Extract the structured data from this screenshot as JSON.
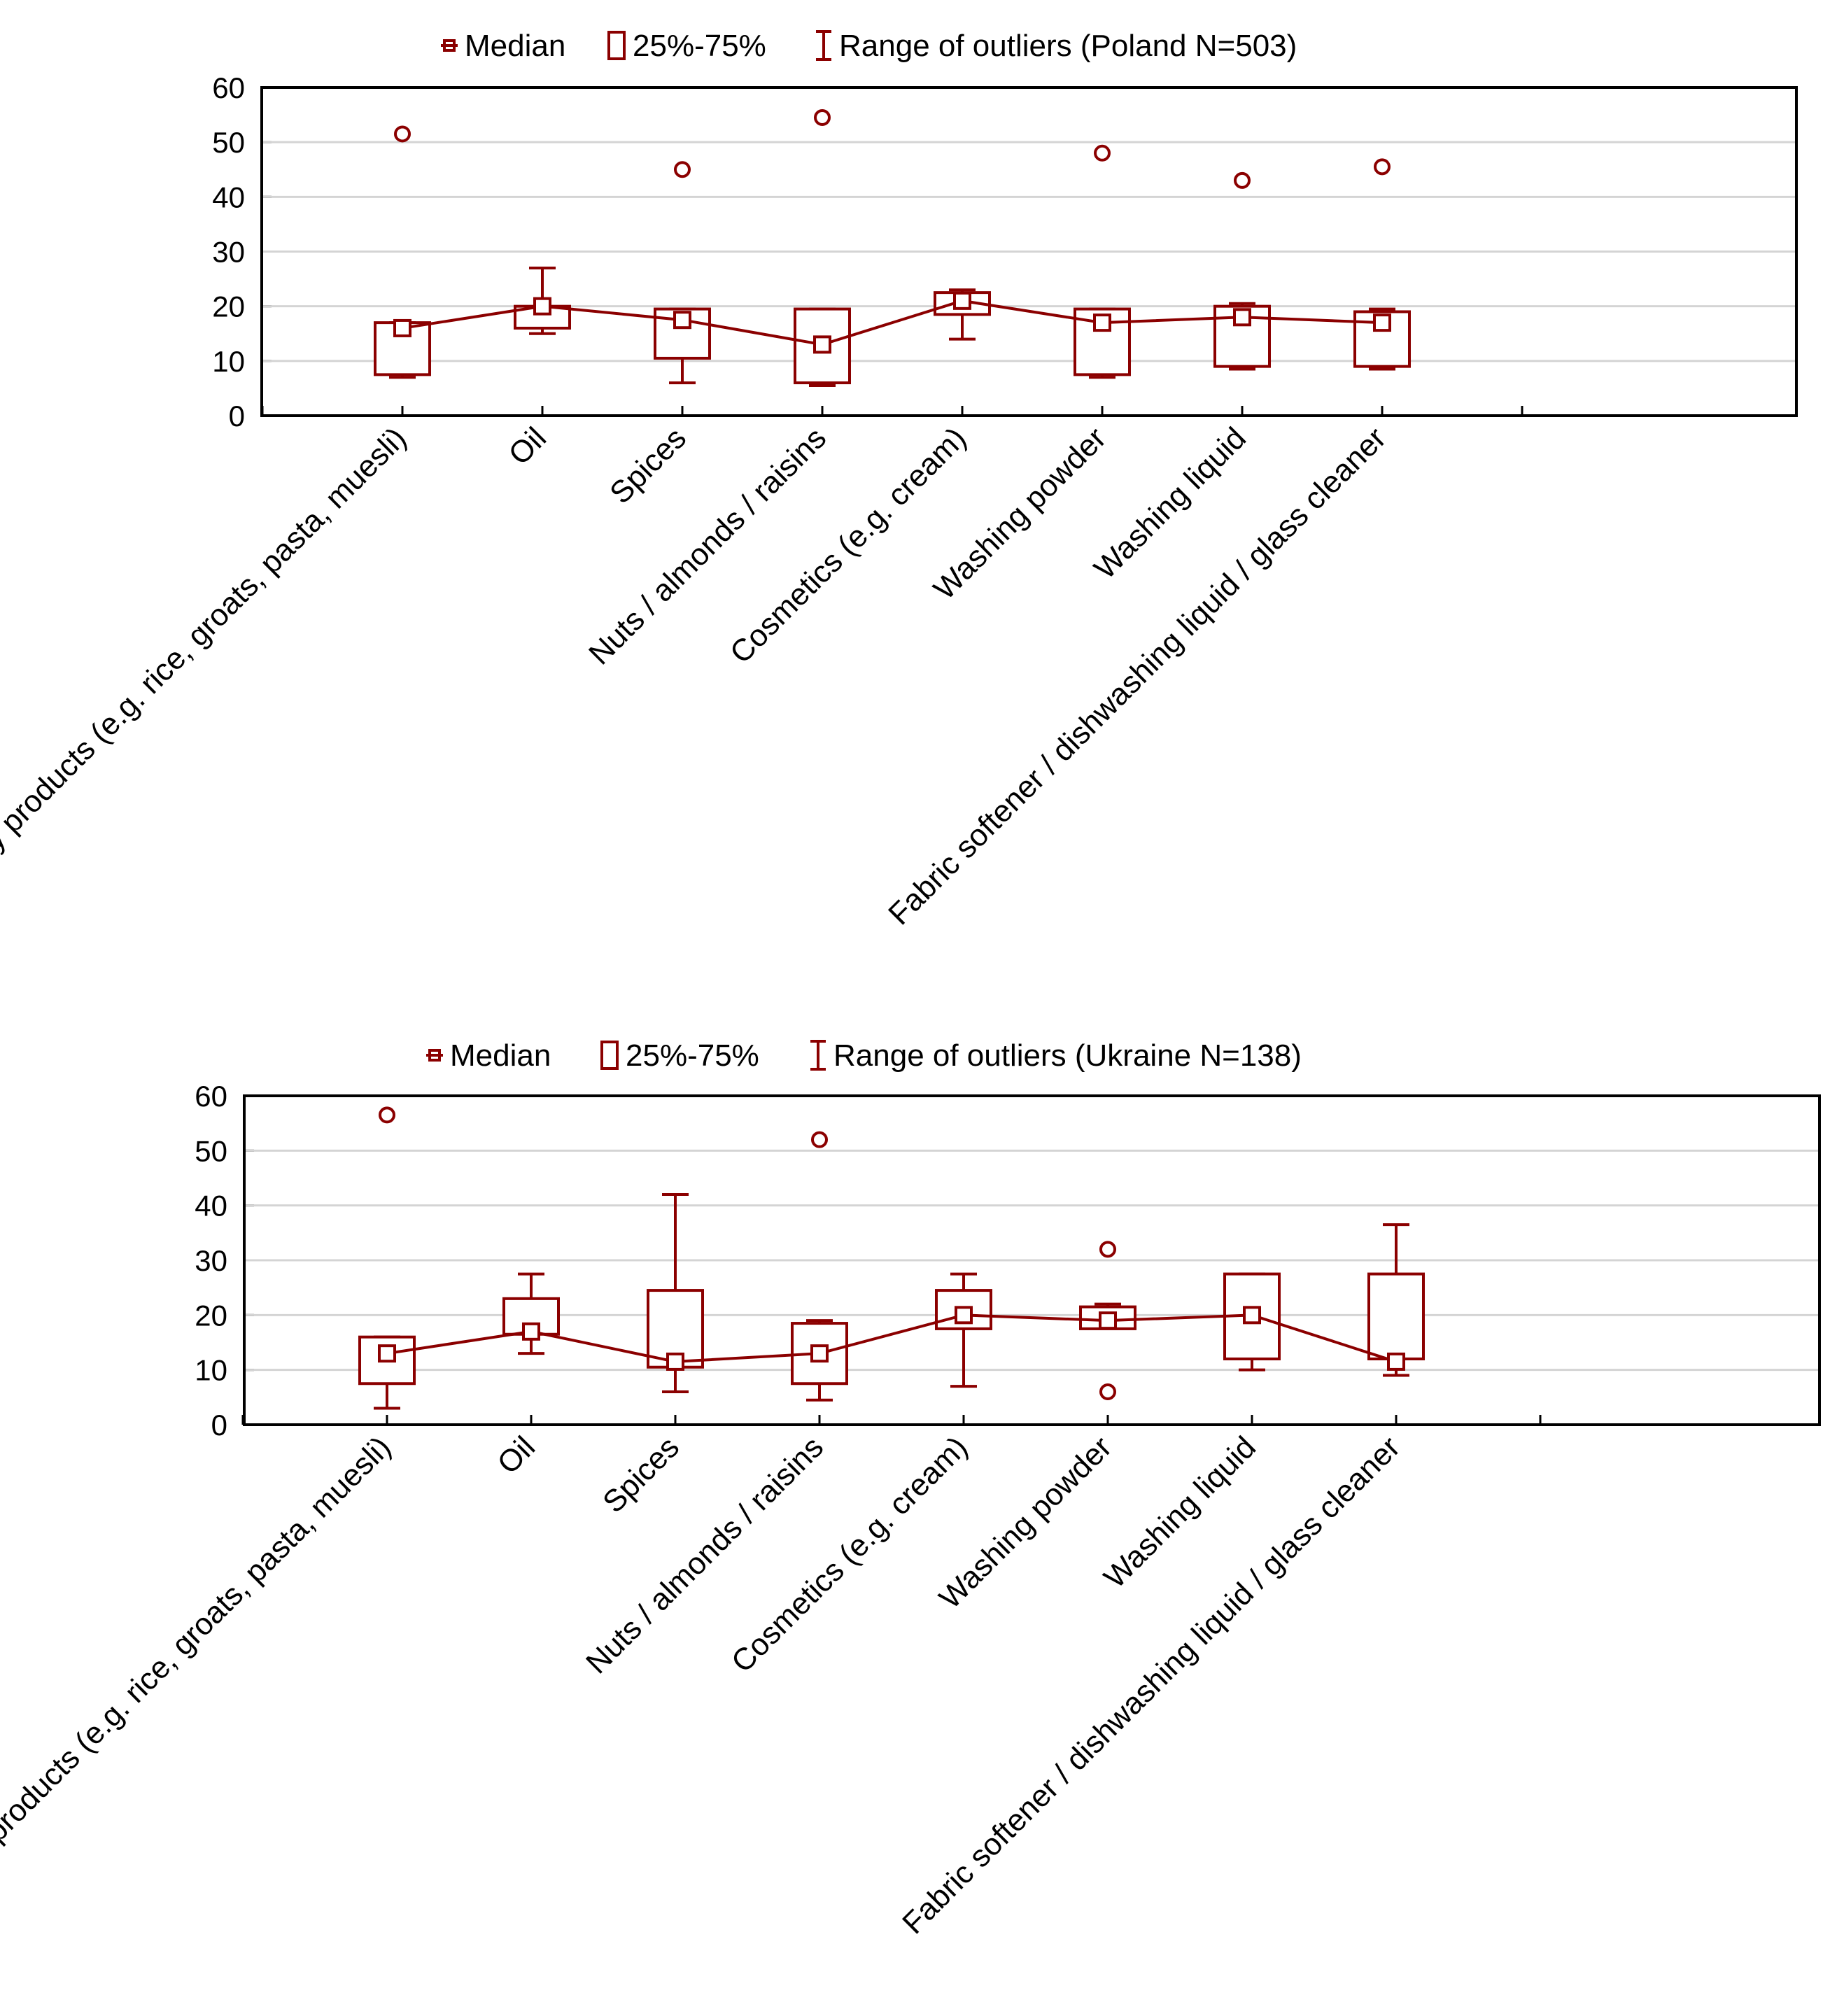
{
  "chart_data": [
    {
      "type": "boxplot",
      "legend": {
        "median_label": "Median",
        "box_label": "25%-75%",
        "whisker_label": "Range of outliers (Poland N=503)"
      },
      "categories": [
        "Dry products (e.g. rice, groats, pasta, muesli)",
        "Oil",
        "Spices",
        "Nuts / almonds / raisins",
        "Cosmetics (e.g. cream)",
        "Washing powder",
        "Washing liquid",
        "Fabric softener / dishwashing liquid / glass cleaner"
      ],
      "ylim": [
        0,
        60
      ],
      "yticks": [
        0,
        10,
        20,
        30,
        40,
        50,
        60
      ],
      "grid": true,
      "series": {
        "median": [
          16,
          20,
          17.5,
          13,
          21,
          17,
          18,
          17
        ],
        "q1": [
          7.5,
          16,
          10.5,
          6,
          18.5,
          7.5,
          9,
          9
        ],
        "q3": [
          17,
          20,
          19.5,
          19.5,
          22.5,
          19.5,
          20,
          19
        ],
        "whisker_low": [
          7,
          15,
          6,
          5.5,
          14,
          7,
          8.5,
          8.5
        ],
        "whisker_high": [
          17,
          27,
          19.5,
          19.5,
          23,
          19.5,
          20.5,
          19.5
        ],
        "outliers": [
          [
            51.5
          ],
          [],
          [
            45
          ],
          [
            54.5
          ],
          [],
          [
            48
          ],
          [
            43
          ],
          [
            45.5
          ]
        ]
      }
    },
    {
      "type": "boxplot",
      "legend": {
        "median_label": "Median",
        "box_label": "25%-75%",
        "whisker_label": "Range of outliers (Ukraine N=138)"
      },
      "categories": [
        "Dry products (e.g. rice, groats, pasta, muesli)",
        "Oil",
        "Spices",
        "Nuts / almonds / raisins",
        "Cosmetics (e.g. cream)",
        "Washing powder",
        "Washing liquid",
        "Fabric softener / dishwashing liquid / glass cleaner"
      ],
      "ylim": [
        0,
        60
      ],
      "yticks": [
        0,
        10,
        20,
        30,
        40,
        50,
        60
      ],
      "grid": true,
      "series": {
        "median": [
          13,
          17,
          11.5,
          13,
          20,
          19,
          20,
          11.5
        ],
        "q1": [
          7.5,
          16.5,
          10.5,
          7.5,
          17.5,
          17.5,
          12,
          12
        ],
        "q3": [
          16,
          23,
          24.5,
          18.5,
          24.5,
          21.5,
          27.5,
          27.5
        ],
        "whisker_low": [
          3,
          13,
          6,
          4.5,
          7,
          18,
          10,
          9
        ],
        "whisker_high": [
          16,
          27.5,
          42,
          19,
          27.5,
          22,
          27.5,
          36.5
        ],
        "outliers": [
          [
            56.5
          ],
          [],
          [],
          [
            52
          ],
          [],
          [
            32,
            6
          ],
          [],
          []
        ]
      }
    }
  ]
}
